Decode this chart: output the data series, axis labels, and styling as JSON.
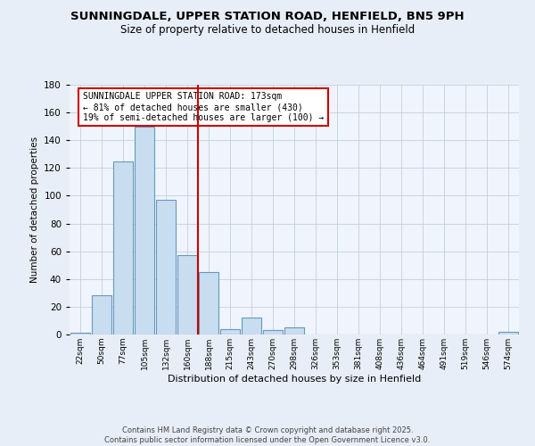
{
  "title": "SUNNINGDALE, UPPER STATION ROAD, HENFIELD, BN5 9PH",
  "subtitle": "Size of property relative to detached houses in Henfield",
  "xlabel": "Distribution of detached houses by size in Henfield",
  "ylabel": "Number of detached properties",
  "bin_labels": [
    "22sqm",
    "50sqm",
    "77sqm",
    "105sqm",
    "132sqm",
    "160sqm",
    "188sqm",
    "215sqm",
    "243sqm",
    "270sqm",
    "298sqm",
    "326sqm",
    "353sqm",
    "381sqm",
    "408sqm",
    "436sqm",
    "464sqm",
    "491sqm",
    "519sqm",
    "546sqm",
    "574sqm"
  ],
  "bar_values": [
    1,
    28,
    125,
    150,
    97,
    57,
    45,
    4,
    12,
    3,
    5,
    0,
    0,
    0,
    0,
    0,
    0,
    0,
    0,
    0,
    2
  ],
  "bar_color": "#c9ddf0",
  "bar_edge_color": "#6699bb",
  "vline_x": 5.5,
  "vline_color": "#cc0000",
  "annotation_text": "SUNNINGDALE UPPER STATION ROAD: 173sqm\n← 81% of detached houses are smaller (430)\n19% of semi-detached houses are larger (100) →",
  "annotation_box_color": "#ffffff",
  "annotation_box_edge": "#cc0000",
  "ylim": [
    0,
    180
  ],
  "yticks": [
    0,
    20,
    40,
    60,
    80,
    100,
    120,
    140,
    160,
    180
  ],
  "background_color": "#e8eef8",
  "plot_background": "#f0f4fc",
  "footer": "Contains HM Land Registry data © Crown copyright and database right 2025.\nContains public sector information licensed under the Open Government Licence v3.0.",
  "title_fontsize": 9.5,
  "subtitle_fontsize": 8.5
}
